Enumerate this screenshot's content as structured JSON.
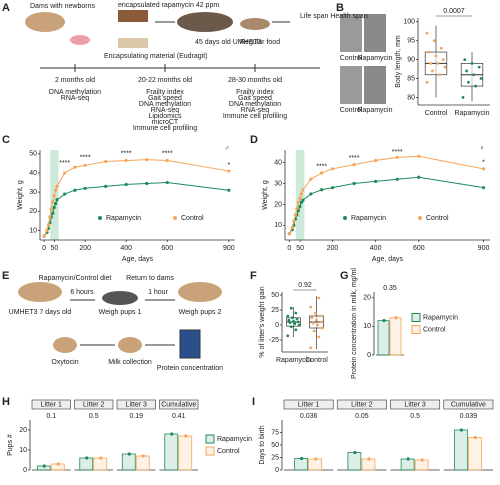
{
  "panel_a": {
    "label": "A",
    "nodes": [
      "Dams with newborns",
      "encapsulated rapamycin 42 ppm",
      "Encapsulating material (Eudragit)",
      "45 days old UMHET3",
      "Regular food",
      "Life span Health span"
    ],
    "timeline": [
      {
        "age": "2 months old",
        "assays": [
          "DNA methylation",
          "RNA-seq"
        ]
      },
      {
        "age": "20-22 months old",
        "assays": [
          "Frailty index",
          "Gait speed",
          "DNA methylation",
          "RNA-seq",
          "Lipidomics",
          "microCT",
          "Immune cell profiling"
        ]
      },
      {
        "age": "28-30 months old",
        "assays": [
          "Frailty index",
          "Gait speed",
          "DNA methylation",
          "RNA-seq",
          "Immune cell profiling"
        ]
      }
    ]
  },
  "panel_b_photos": {
    "labels": [
      "Control",
      "Rapamycin",
      "Control",
      "Rapamycin"
    ]
  },
  "panel_e": {
    "label": "E",
    "nodes": [
      "Rapamycin/Control diet",
      "6 hours",
      "Return to dams",
      "1 hour",
      "UMHET3 7 days old",
      "Weigh pups 1",
      "Weigh pups 2",
      "Oxytocin",
      "Milk collection",
      "Protein concentration"
    ]
  },
  "chart_data": [
    {
      "type": "box",
      "label": "B",
      "categories": [
        "Control",
        "Rapamycin"
      ],
      "colors": [
        "#f5a55a",
        "#1e8a5a"
      ],
      "boxes": [
        [
          80,
          86,
          89,
          92,
          99
        ],
        [
          79,
          83,
          86,
          89,
          92
        ]
      ],
      "points": [
        [
          84,
          86,
          87,
          88,
          89,
          89,
          90,
          91,
          92,
          93,
          95,
          97
        ],
        [
          80,
          83,
          84,
          85,
          86,
          87,
          88,
          89,
          90
        ]
      ],
      "ylim": [
        78,
        101
      ],
      "yticks": [
        80,
        85,
        90,
        95,
        100
      ],
      "ylabel": "Body length, mm",
      "annotation": "0.0007"
    },
    {
      "type": "line",
      "label": "C",
      "symbol": "♂",
      "x": [
        0,
        14,
        21,
        28,
        35,
        42,
        49,
        56,
        63,
        100,
        150,
        200,
        300,
        400,
        500,
        600,
        900
      ],
      "series": [
        {
          "name": "Rapamycin",
          "color": "#1e8a5a",
          "values": [
            7,
            9,
            11,
            14,
            17,
            19,
            22,
            24,
            26,
            29,
            31,
            32,
            33,
            34,
            34.5,
            35,
            31
          ]
        },
        {
          "name": "Control",
          "color": "#f5a55a",
          "values": [
            7,
            10,
            13,
            17,
            21,
            25,
            28,
            31,
            33,
            40,
            43,
            44,
            46,
            46.5,
            47,
            46.5,
            41
          ]
        }
      ],
      "highlight": [
        30,
        70
      ],
      "xlim": [
        -20,
        930
      ],
      "xticks": [
        0,
        50,
        200,
        400,
        600,
        900
      ],
      "ylim": [
        5,
        52
      ],
      "yticks": [
        10,
        20,
        30,
        40,
        50
      ],
      "xlabel": "Age, days",
      "ylabel": "Weight, g",
      "stars": [
        {
          "x": 100,
          "y": 45,
          "text": "****"
        },
        {
          "x": 200,
          "y": 48,
          "text": "****"
        },
        {
          "x": 400,
          "y": 50,
          "text": "****"
        },
        {
          "x": 600,
          "y": 50,
          "text": "****"
        },
        {
          "x": 900,
          "y": 44,
          "text": "*"
        }
      ]
    },
    {
      "type": "line",
      "label": "D",
      "symbol": "♀",
      "x": [
        0,
        14,
        21,
        28,
        35,
        42,
        49,
        56,
        63,
        100,
        150,
        200,
        300,
        400,
        500,
        600,
        900
      ],
      "series": [
        {
          "name": "Rapamycin",
          "color": "#1e8a5a",
          "values": [
            6,
            8,
            10,
            13,
            15,
            17,
            19,
            21,
            22,
            25,
            27,
            28,
            30,
            31,
            32,
            33,
            28
          ]
        },
        {
          "name": "Control",
          "color": "#f5a55a",
          "values": [
            6,
            9,
            12,
            15,
            18,
            21,
            23,
            25,
            27,
            32,
            35,
            37,
            39,
            41,
            42.5,
            43,
            37
          ]
        }
      ],
      "highlight": [
        30,
        70
      ],
      "xlim": [
        -20,
        930
      ],
      "xticks": [
        0,
        50,
        200,
        400,
        600,
        900
      ],
      "ylim": [
        3,
        46
      ],
      "yticks": [
        10,
        20,
        30,
        40
      ],
      "xlabel": "Age, days",
      "ylabel": "Weight, g",
      "stars": [
        {
          "x": 150,
          "y": 38,
          "text": "****"
        },
        {
          "x": 300,
          "y": 42,
          "text": "****"
        },
        {
          "x": 500,
          "y": 45,
          "text": "****"
        },
        {
          "x": 900,
          "y": 40,
          "text": "*"
        }
      ]
    },
    {
      "type": "box",
      "label": "F",
      "categories": [
        "Rapamycin",
        "Control"
      ],
      "colors": [
        "#1e8a5a",
        "#f5a55a"
      ],
      "boxes": [
        [
          -20,
          -2,
          5,
          12,
          30
        ],
        [
          -40,
          -5,
          5,
          15,
          48
        ]
      ],
      "points": [
        [
          -18,
          -8,
          -3,
          0,
          2,
          4,
          5,
          6,
          8,
          10,
          12,
          15,
          20,
          28
        ],
        [
          -38,
          -20,
          -10,
          -5,
          0,
          3,
          5,
          8,
          12,
          15,
          20,
          30,
          45
        ]
      ],
      "ylim": [
        -45,
        55
      ],
      "yticks": [
        -25,
        0,
        25,
        50
      ],
      "ylabel": "% of litter's weight gain",
      "annotation": "0.92"
    },
    {
      "type": "facet_bar",
      "label": "G",
      "legend": true,
      "series": [
        {
          "name": "Rapamycin",
          "color": "#1e8a5a",
          "values": [
            12
          ]
        },
        {
          "name": "Control",
          "color": "#f5a55a",
          "values": [
            13
          ]
        }
      ],
      "pvalues": [
        "0.35"
      ],
      "ylim": [
        0,
        22
      ],
      "yticks": [
        0,
        10,
        20
      ],
      "ylabel": "Protein concentration in milk, mg/ml"
    },
    {
      "type": "facet_bar",
      "label": "H",
      "legend": true,
      "categories": [
        "Litter 1",
        "Litter 2",
        "Litter 3",
        "Cumulative"
      ],
      "series": [
        {
          "name": "Rapamycin",
          "color": "#1e8a5a",
          "values": [
            2,
            6,
            8,
            18
          ]
        },
        {
          "name": "Control",
          "color": "#f5a55a",
          "values": [
            3,
            6,
            7,
            17
          ]
        }
      ],
      "pvalues": [
        "0.1",
        "0.5",
        "0.19",
        "0.41"
      ],
      "ylim": [
        0,
        25
      ],
      "yticks": [
        0,
        10,
        20
      ],
      "ylabel": "Pups #"
    },
    {
      "type": "facet_bar",
      "label": "I",
      "legend": false,
      "categories": [
        "Litter 1",
        "Litter 2",
        "Litter 3",
        "Cumulative"
      ],
      "series": [
        {
          "name": "Rapamycin",
          "color": "#1e8a5a",
          "values": [
            23,
            35,
            22,
            80
          ]
        },
        {
          "name": "Control",
          "color": "#f5a55a",
          "values": [
            22,
            22,
            20,
            65
          ]
        }
      ],
      "pvalues": [
        "0.036",
        "0.05",
        "0.5",
        "0.039"
      ],
      "ylim": [
        0,
        100
      ],
      "yticks": [
        0,
        25,
        50,
        75
      ],
      "ylabel": "Days to birth"
    }
  ]
}
